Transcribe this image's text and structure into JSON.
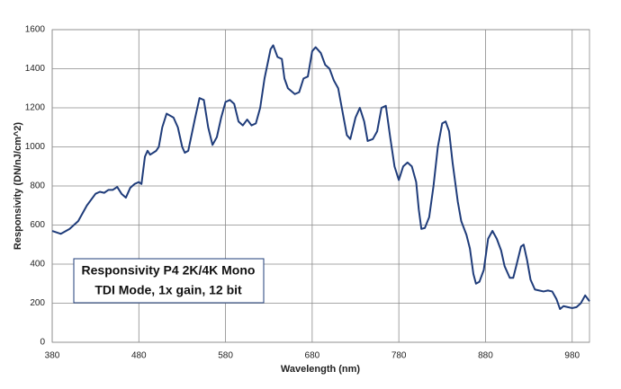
{
  "chart_data": {
    "type": "line",
    "xlabel": "Wavelength (nm)",
    "ylabel": "Responsivity (DN/nJ/cm^2)",
    "annotation": [
      "Responsivity  P4 2K/4K Mono",
      "TDI Mode, 1x gain, 12 bit"
    ],
    "xlim": [
      380,
      1000
    ],
    "xticks": [
      380,
      480,
      580,
      680,
      780,
      880,
      980
    ],
    "ylim": [
      0,
      1600
    ],
    "yticks": [
      0,
      200,
      400,
      600,
      800,
      1000,
      1200,
      1400,
      1600
    ],
    "grid": true,
    "series": [
      {
        "color": "#1f3c7a",
        "x": [
          380,
          390,
          400,
          410,
          420,
          430,
          435,
          440,
          445,
          450,
          455,
          460,
          465,
          470,
          475,
          480,
          483,
          487,
          490,
          493,
          500,
          503,
          507,
          512,
          520,
          525,
          530,
          533,
          537,
          545,
          550,
          555,
          560,
          565,
          570,
          575,
          580,
          585,
          590,
          595,
          600,
          605,
          610,
          615,
          620,
          625,
          632,
          635,
          640,
          645,
          648,
          652,
          660,
          665,
          670,
          675,
          680,
          684,
          690,
          695,
          700,
          705,
          710,
          715,
          720,
          724,
          730,
          735,
          740,
          744,
          750,
          755,
          760,
          765,
          770,
          775,
          780,
          785,
          790,
          795,
          800,
          803,
          806,
          810,
          815,
          820,
          825,
          830,
          834,
          838,
          842,
          848,
          852,
          858,
          862,
          866,
          869,
          873,
          878,
          883,
          888,
          893,
          898,
          902,
          908,
          912,
          916,
          921,
          924,
          928,
          932,
          937,
          942,
          947,
          952,
          957,
          962,
          966,
          970,
          975,
          980,
          985,
          990,
          995,
          1000
        ],
        "values": [
          570,
          555,
          580,
          620,
          700,
          760,
          770,
          765,
          780,
          780,
          795,
          760,
          740,
          790,
          810,
          820,
          810,
          950,
          980,
          960,
          980,
          1000,
          1100,
          1170,
          1150,
          1100,
          1000,
          970,
          980,
          1150,
          1250,
          1240,
          1100,
          1010,
          1050,
          1150,
          1230,
          1240,
          1220,
          1130,
          1110,
          1140,
          1110,
          1120,
          1200,
          1350,
          1500,
          1520,
          1460,
          1450,
          1350,
          1300,
          1270,
          1280,
          1350,
          1360,
          1490,
          1510,
          1480,
          1420,
          1400,
          1340,
          1300,
          1180,
          1060,
          1040,
          1150,
          1200,
          1130,
          1030,
          1040,
          1080,
          1200,
          1210,
          1050,
          900,
          830,
          900,
          920,
          900,
          820,
          680,
          580,
          585,
          640,
          800,
          1000,
          1120,
          1130,
          1080,
          920,
          720,
          620,
          550,
          480,
          350,
          300,
          310,
          370,
          530,
          570,
          530,
          470,
          390,
          330,
          330,
          400,
          490,
          500,
          420,
          320,
          270,
          265,
          260,
          265,
          260,
          220,
          170,
          185,
          180,
          175,
          180,
          200,
          240,
          210
        ]
      }
    ]
  }
}
